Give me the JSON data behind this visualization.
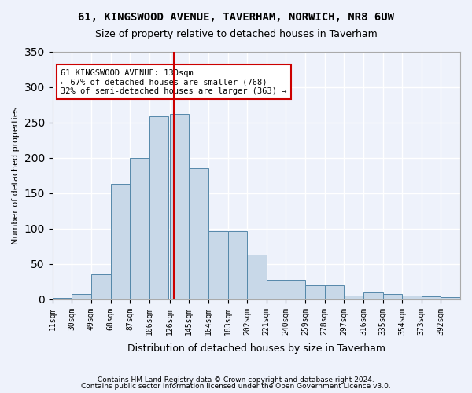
{
  "title1": "61, KINGSWOOD AVENUE, TAVERHAM, NORWICH, NR8 6UW",
  "title2": "Size of property relative to detached houses in Taverham",
  "xlabel": "Distribution of detached houses by size in Taverham",
  "ylabel": "Number of detached properties",
  "bin_labels": [
    "11sqm",
    "30sqm",
    "49sqm",
    "68sqm",
    "87sqm",
    "106sqm",
    "126sqm",
    "145sqm",
    "164sqm",
    "183sqm",
    "202sqm",
    "221sqm",
    "240sqm",
    "259sqm",
    "278sqm",
    "297sqm",
    "316sqm",
    "335sqm",
    "354sqm",
    "373sqm",
    "392sqm"
  ],
  "bin_starts": [
    11,
    30,
    49,
    68,
    87,
    106,
    126,
    145,
    164,
    183,
    202,
    221,
    240,
    259,
    278,
    297,
    316,
    335,
    354,
    373,
    392
  ],
  "bin_width": 19,
  "bar_heights": [
    2,
    8,
    35,
    163,
    200,
    258,
    262,
    185,
    96,
    96,
    63,
    28,
    28,
    20,
    20,
    6,
    10,
    8,
    5,
    4,
    3
  ],
  "bar_color": "#c8d8e8",
  "bar_edge_color": "#5588aa",
  "vline_x": 130,
  "vline_color": "#cc0000",
  "annotation_text": "61 KINGSWOOD AVENUE: 130sqm\n← 67% of detached houses are smaller (768)\n32% of semi-detached houses are larger (363) →",
  "annotation_box_color": "#cc0000",
  "footer1": "Contains HM Land Registry data © Crown copyright and database right 2024.",
  "footer2": "Contains public sector information licensed under the Open Government Licence v3.0.",
  "ylim": [
    0,
    350
  ],
  "xlim": [
    11,
    411
  ],
  "bg_color": "#eef2fb",
  "grid_color": "#ffffff"
}
